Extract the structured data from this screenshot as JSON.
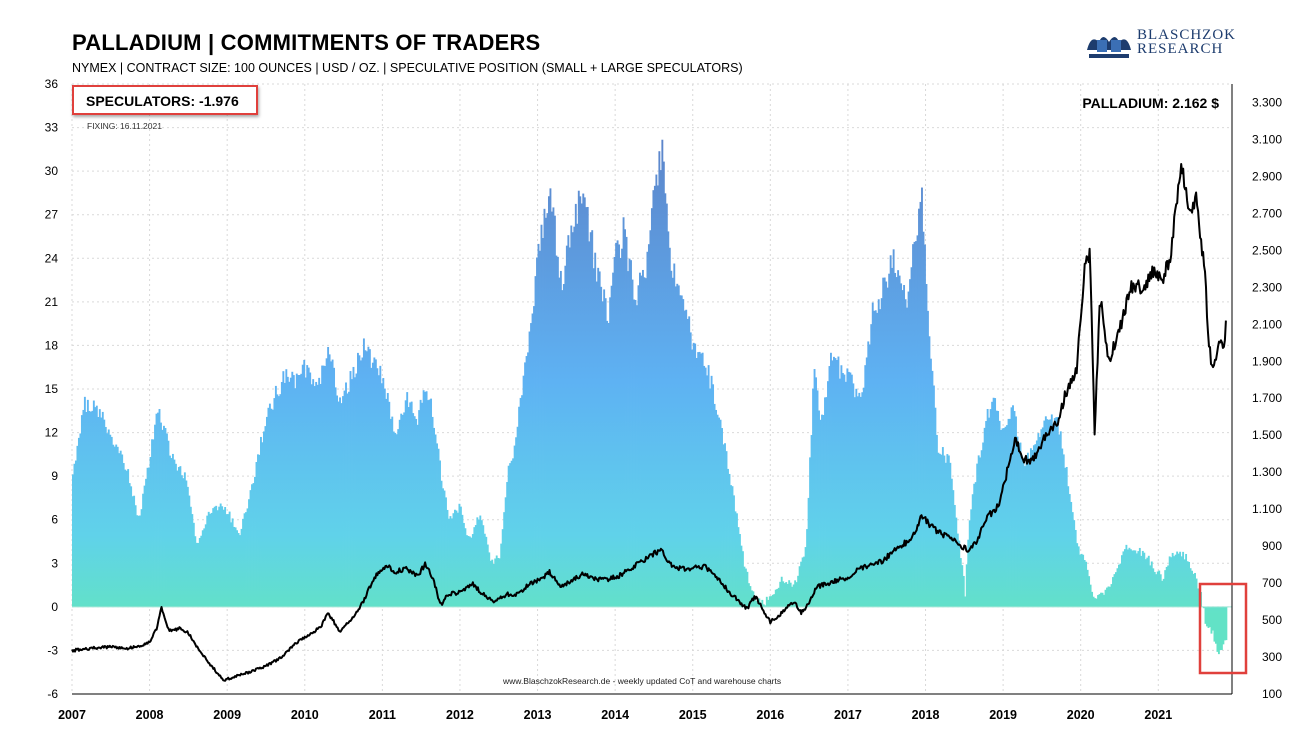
{
  "header": {
    "title": "PALLADIUM | COMMITMENTS OF TRADERS",
    "subtitle": "NYMEX | CONTRACT SIZE: 100 OUNCES | USD / OZ. | SPECULATIVE POSITION (SMALL + LARGE SPECULATORS)",
    "logo_line1": "BLASCHZOK",
    "logo_line2": "RESEARCH"
  },
  "annotations": {
    "speculators": "SPECULATORS: -1.976",
    "fixing": "FIXING:  16.11.2021",
    "palladium_price": "PALLADIUM: 2.162 $",
    "footer": "www.BlaschzokResearch.de  - weekly updated CoT and warehouse charts",
    "highlight_color": "#e0403c"
  },
  "chart_data": {
    "type": "bar",
    "x": [
      "2007",
      "2008",
      "2009",
      "2010",
      "2011",
      "2012",
      "2013",
      "2014",
      "2015",
      "2016",
      "2017",
      "2018",
      "2019",
      "2020",
      "2021"
    ],
    "xlim": [
      "2007",
      "2021-11"
    ],
    "y_left": {
      "label": "",
      "ylim": [
        -6,
        36
      ],
      "ticks": [
        "-6",
        "-3",
        "0",
        "3",
        "6",
        "9",
        "12",
        "15",
        "18",
        "21",
        "24",
        "27",
        "30",
        "33",
        "36"
      ]
    },
    "y_right": {
      "label": "",
      "ylim": [
        100,
        3400
      ],
      "ticks": [
        "100",
        "300",
        "500",
        "700",
        "900",
        "1.100",
        "1.300",
        "1.500",
        "1.700",
        "1.900",
        "2.100",
        "2.300",
        "2.500",
        "2.700",
        "2.900",
        "3.100",
        "3.300"
      ]
    },
    "grid": true,
    "legend": "none",
    "colors": {
      "bars_top": "#5c8ed1",
      "bars_mid": "#5eb0f2",
      "bars_bottom": "#62e0c8",
      "line": "#000000"
    },
    "series": [
      {
        "name": "SPECULATORS",
        "axis": "left",
        "type": "bar",
        "points": [
          [
            2007.0,
            9.0
          ],
          [
            2007.15,
            14.0
          ],
          [
            2007.35,
            13.5
          ],
          [
            2007.5,
            11.5
          ],
          [
            2007.7,
            9.5
          ],
          [
            2007.85,
            6.0
          ],
          [
            2008.0,
            10.5
          ],
          [
            2008.1,
            13.5
          ],
          [
            2008.3,
            10.0
          ],
          [
            2008.45,
            9.0
          ],
          [
            2008.55,
            6.0
          ],
          [
            2008.6,
            4.0
          ],
          [
            2008.75,
            6.5
          ],
          [
            2008.9,
            7.0
          ],
          [
            2009.0,
            6.5
          ],
          [
            2009.15,
            5.0
          ],
          [
            2009.3,
            8.0
          ],
          [
            2009.45,
            12.0
          ],
          [
            2009.6,
            14.5
          ],
          [
            2009.75,
            16.0
          ],
          [
            2009.9,
            15.5
          ],
          [
            2010.0,
            16.5
          ],
          [
            2010.15,
            15.0
          ],
          [
            2010.3,
            17.5
          ],
          [
            2010.45,
            14.0
          ],
          [
            2010.6,
            16.0
          ],
          [
            2010.75,
            18.0
          ],
          [
            2010.85,
            17.0
          ],
          [
            2011.0,
            15.5
          ],
          [
            2011.15,
            12.0
          ],
          [
            2011.3,
            14.5
          ],
          [
            2011.45,
            13.0
          ],
          [
            2011.55,
            15.5
          ],
          [
            2011.65,
            13.0
          ],
          [
            2011.75,
            9.0
          ],
          [
            2011.85,
            6.0
          ],
          [
            2012.0,
            7.0
          ],
          [
            2012.1,
            4.5
          ],
          [
            2012.25,
            6.5
          ],
          [
            2012.4,
            3.0
          ],
          [
            2012.5,
            3.5
          ],
          [
            2012.6,
            9.0
          ],
          [
            2012.7,
            11.0
          ],
          [
            2012.78,
            14.5
          ],
          [
            2012.88,
            18.0
          ],
          [
            2013.0,
            24.0
          ],
          [
            2013.15,
            29.0
          ],
          [
            2013.3,
            22.0
          ],
          [
            2013.45,
            27.0
          ],
          [
            2013.6,
            28.0
          ],
          [
            2013.75,
            23.0
          ],
          [
            2013.9,
            20.0
          ],
          [
            2014.0,
            24.0
          ],
          [
            2014.1,
            26.0
          ],
          [
            2014.25,
            21.0
          ],
          [
            2014.4,
            24.0
          ],
          [
            2014.5,
            29.0
          ],
          [
            2014.6,
            32.0
          ],
          [
            2014.7,
            24.0
          ],
          [
            2014.8,
            22.0
          ],
          [
            2014.9,
            20.0
          ],
          [
            2015.0,
            18.0
          ],
          [
            2015.2,
            16.0
          ],
          [
            2015.4,
            11.0
          ],
          [
            2015.55,
            6.5
          ],
          [
            2015.65,
            3.0
          ],
          [
            2015.75,
            1.0
          ],
          [
            2015.85,
            0.3
          ],
          [
            2016.0,
            0.5
          ],
          [
            2016.15,
            2.0
          ],
          [
            2016.3,
            1.5
          ],
          [
            2016.45,
            4.0
          ],
          [
            2016.55,
            16.0
          ],
          [
            2016.65,
            13.0
          ],
          [
            2016.8,
            18.0
          ],
          [
            2016.9,
            16.0
          ],
          [
            2017.0,
            16.0
          ],
          [
            2017.15,
            14.0
          ],
          [
            2017.3,
            20.0
          ],
          [
            2017.45,
            22.0
          ],
          [
            2017.6,
            24.0
          ],
          [
            2017.75,
            21.0
          ],
          [
            2017.85,
            25.0
          ],
          [
            2017.95,
            28.0
          ],
          [
            2018.05,
            18.0
          ],
          [
            2018.15,
            11.0
          ],
          [
            2018.3,
            10.0
          ],
          [
            2018.4,
            5.5
          ],
          [
            2018.5,
            1.0
          ],
          [
            2018.55,
            6.0
          ],
          [
            2018.7,
            11.0
          ],
          [
            2018.85,
            14.5
          ],
          [
            2019.0,
            12.0
          ],
          [
            2019.1,
            14.0
          ],
          [
            2019.25,
            10.0
          ],
          [
            2019.4,
            11.0
          ],
          [
            2019.55,
            13.0
          ],
          [
            2019.7,
            12.5
          ],
          [
            2019.85,
            8.0
          ],
          [
            2019.95,
            4.0
          ],
          [
            2020.05,
            3.0
          ],
          [
            2020.15,
            0.8
          ],
          [
            2020.3,
            1.0
          ],
          [
            2020.45,
            2.5
          ],
          [
            2020.55,
            4.0
          ],
          [
            2020.7,
            4.0
          ],
          [
            2020.85,
            3.5
          ],
          [
            2020.95,
            2.5
          ],
          [
            2021.05,
            2.0
          ],
          [
            2021.15,
            3.5
          ],
          [
            2021.3,
            3.8
          ],
          [
            2021.45,
            2.5
          ],
          [
            2021.55,
            0.5
          ],
          [
            2021.6,
            -1.0
          ],
          [
            2021.7,
            -2.0
          ],
          [
            2021.75,
            -3.3
          ],
          [
            2021.82,
            -3.0
          ],
          [
            2021.88,
            -1.976
          ]
        ]
      },
      {
        "name": "PALLADIUM",
        "axis": "right",
        "type": "line",
        "points": [
          [
            2007.0,
            335
          ],
          [
            2007.3,
            350
          ],
          [
            2007.5,
            355
          ],
          [
            2007.7,
            345
          ],
          [
            2007.9,
            365
          ],
          [
            2008.0,
            380
          ],
          [
            2008.1,
            460
          ],
          [
            2008.15,
            570
          ],
          [
            2008.25,
            440
          ],
          [
            2008.4,
            455
          ],
          [
            2008.5,
            430
          ],
          [
            2008.65,
            330
          ],
          [
            2008.8,
            250
          ],
          [
            2008.95,
            175
          ],
          [
            2009.1,
            195
          ],
          [
            2009.3,
            220
          ],
          [
            2009.5,
            250
          ],
          [
            2009.7,
            300
          ],
          [
            2009.9,
            380
          ],
          [
            2010.05,
            420
          ],
          [
            2010.2,
            460
          ],
          [
            2010.3,
            540
          ],
          [
            2010.45,
            440
          ],
          [
            2010.6,
            500
          ],
          [
            2010.75,
            600
          ],
          [
            2010.9,
            735
          ],
          [
            2011.05,
            800
          ],
          [
            2011.15,
            760
          ],
          [
            2011.3,
            780
          ],
          [
            2011.45,
            740
          ],
          [
            2011.55,
            800
          ],
          [
            2011.65,
            730
          ],
          [
            2011.75,
            580
          ],
          [
            2011.85,
            640
          ],
          [
            2012.0,
            650
          ],
          [
            2012.15,
            700
          ],
          [
            2012.3,
            640
          ],
          [
            2012.45,
            600
          ],
          [
            2012.6,
            640
          ],
          [
            2012.75,
            640
          ],
          [
            2012.9,
            700
          ],
          [
            2013.05,
            720
          ],
          [
            2013.15,
            760
          ],
          [
            2013.3,
            680
          ],
          [
            2013.45,
            720
          ],
          [
            2013.6,
            750
          ],
          [
            2013.75,
            720
          ],
          [
            2013.9,
            720
          ],
          [
            2014.05,
            740
          ],
          [
            2014.2,
            780
          ],
          [
            2014.35,
            820
          ],
          [
            2014.5,
            860
          ],
          [
            2014.6,
            880
          ],
          [
            2014.7,
            800
          ],
          [
            2014.85,
            780
          ],
          [
            2015.0,
            780
          ],
          [
            2015.15,
            790
          ],
          [
            2015.3,
            740
          ],
          [
            2015.45,
            660
          ],
          [
            2015.6,
            600
          ],
          [
            2015.7,
            560
          ],
          [
            2015.8,
            630
          ],
          [
            2015.9,
            560
          ],
          [
            2016.0,
            490
          ],
          [
            2016.15,
            540
          ],
          [
            2016.3,
            600
          ],
          [
            2016.4,
            540
          ],
          [
            2016.5,
            590
          ],
          [
            2016.6,
            680
          ],
          [
            2016.75,
            700
          ],
          [
            2016.9,
            720
          ],
          [
            2017.0,
            720
          ],
          [
            2017.15,
            780
          ],
          [
            2017.3,
            800
          ],
          [
            2017.45,
            820
          ],
          [
            2017.6,
            880
          ],
          [
            2017.75,
            920
          ],
          [
            2017.85,
            960
          ],
          [
            2017.95,
            1060
          ],
          [
            2018.05,
            1020
          ],
          [
            2018.15,
            980
          ],
          [
            2018.3,
            950
          ],
          [
            2018.45,
            900
          ],
          [
            2018.55,
            880
          ],
          [
            2018.65,
            920
          ],
          [
            2018.8,
            1060
          ],
          [
            2018.95,
            1120
          ],
          [
            2019.05,
            1300
          ],
          [
            2019.15,
            1480
          ],
          [
            2019.25,
            1380
          ],
          [
            2019.35,
            1360
          ],
          [
            2019.45,
            1400
          ],
          [
            2019.55,
            1500
          ],
          [
            2019.7,
            1560
          ],
          [
            2019.8,
            1720
          ],
          [
            2019.95,
            1860
          ],
          [
            2020.05,
            2400
          ],
          [
            2020.12,
            2500
          ],
          [
            2020.18,
            1500
          ],
          [
            2020.25,
            2250
          ],
          [
            2020.35,
            1900
          ],
          [
            2020.45,
            2000
          ],
          [
            2020.55,
            2150
          ],
          [
            2020.65,
            2300
          ],
          [
            2020.75,
            2300
          ],
          [
            2020.85,
            2320
          ],
          [
            2020.95,
            2400
          ],
          [
            2021.05,
            2350
          ],
          [
            2021.15,
            2450
          ],
          [
            2021.25,
            2800
          ],
          [
            2021.3,
            2950
          ],
          [
            2021.4,
            2700
          ],
          [
            2021.5,
            2780
          ],
          [
            2021.55,
            2550
          ],
          [
            2021.6,
            2400
          ],
          [
            2021.65,
            2000
          ],
          [
            2021.7,
            1850
          ],
          [
            2021.78,
            2000
          ],
          [
            2021.85,
            1950
          ],
          [
            2021.88,
            2162
          ]
        ]
      }
    ]
  }
}
